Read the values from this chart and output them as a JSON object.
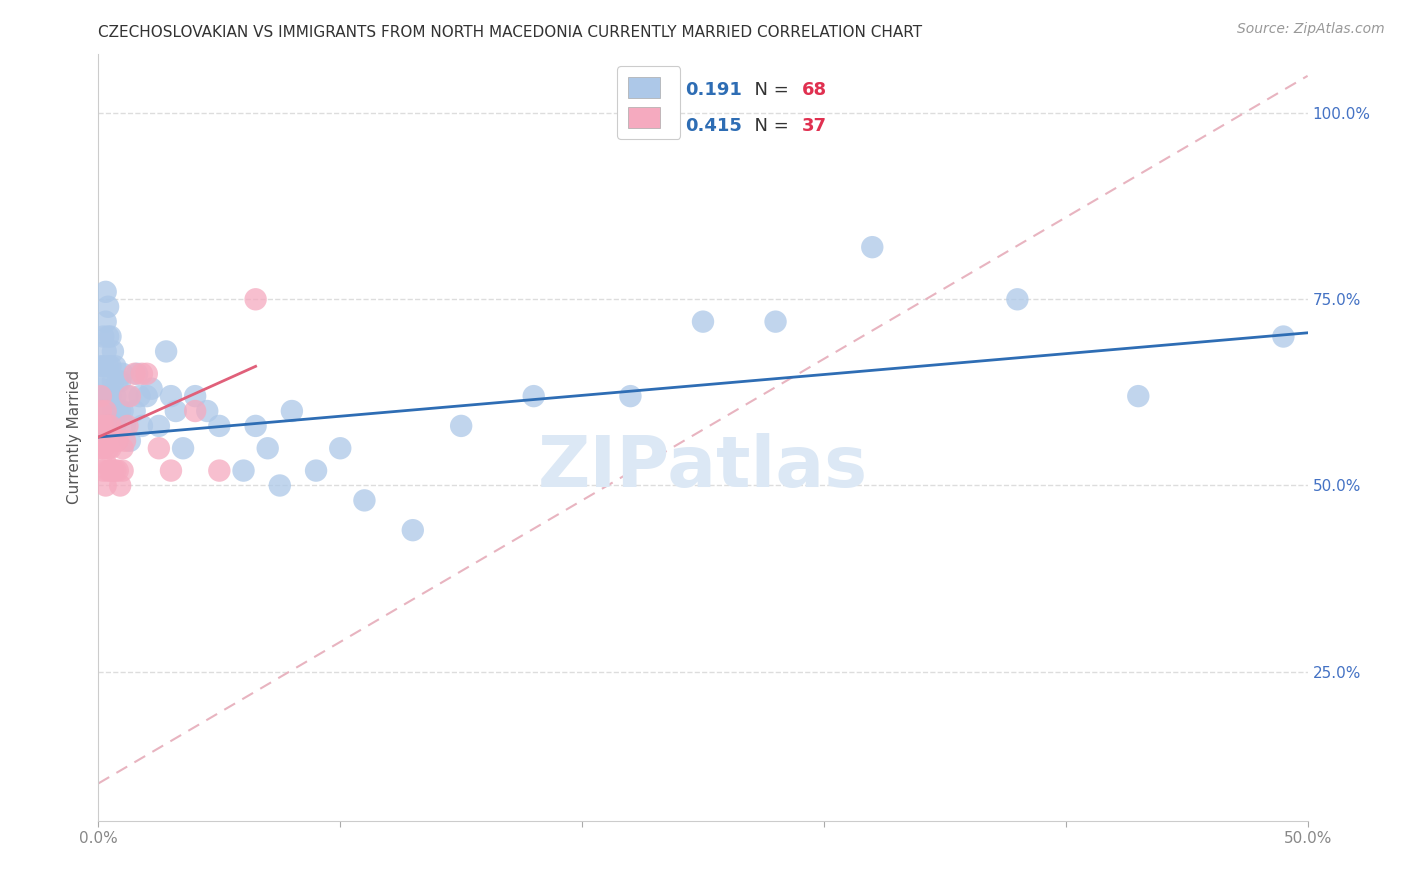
{
  "title": "CZECHOSLOVAKIAN VS IMMIGRANTS FROM NORTH MACEDONIA CURRENTLY MARRIED CORRELATION CHART",
  "source": "Source: ZipAtlas.com",
  "ylabel": "Currently Married",
  "right_yticklabels": [
    "",
    "25.0%",
    "50.0%",
    "75.0%",
    "100.0%"
  ],
  "xmin": 0.0,
  "xmax": 0.5,
  "ymin": 0.05,
  "ymax": 1.08,
  "legend_r1": "0.191",
  "legend_n1": "68",
  "legend_r2": "0.415",
  "legend_n2": "37",
  "blue_scatter_color": "#adc8e8",
  "pink_scatter_color": "#f5aabf",
  "blue_line_color": "#2e6db4",
  "pink_line_color": "#e0607a",
  "ref_line_color": "#e8b4c0",
  "watermark_text": "ZIPatlas",
  "watermark_color": "#dce8f5",
  "blue_points_x": [
    0.001,
    0.001,
    0.001,
    0.002,
    0.002,
    0.002,
    0.002,
    0.003,
    0.003,
    0.003,
    0.003,
    0.003,
    0.004,
    0.004,
    0.004,
    0.004,
    0.004,
    0.005,
    0.005,
    0.005,
    0.005,
    0.006,
    0.006,
    0.006,
    0.007,
    0.007,
    0.007,
    0.008,
    0.008,
    0.009,
    0.009,
    0.01,
    0.01,
    0.011,
    0.012,
    0.013,
    0.015,
    0.016,
    0.017,
    0.018,
    0.02,
    0.022,
    0.025,
    0.028,
    0.03,
    0.032,
    0.035,
    0.04,
    0.045,
    0.05,
    0.06,
    0.065,
    0.07,
    0.075,
    0.08,
    0.09,
    0.1,
    0.11,
    0.13,
    0.15,
    0.18,
    0.22,
    0.25,
    0.28,
    0.32,
    0.38,
    0.43,
    0.49
  ],
  "blue_points_y": [
    0.6,
    0.63,
    0.66,
    0.58,
    0.62,
    0.66,
    0.7,
    0.6,
    0.64,
    0.68,
    0.72,
    0.76,
    0.58,
    0.62,
    0.66,
    0.7,
    0.74,
    0.58,
    0.62,
    0.66,
    0.7,
    0.6,
    0.64,
    0.68,
    0.58,
    0.62,
    0.66,
    0.6,
    0.64,
    0.6,
    0.64,
    0.6,
    0.65,
    0.58,
    0.62,
    0.56,
    0.6,
    0.65,
    0.62,
    0.58,
    0.62,
    0.63,
    0.58,
    0.68,
    0.62,
    0.6,
    0.55,
    0.62,
    0.6,
    0.58,
    0.52,
    0.58,
    0.55,
    0.5,
    0.6,
    0.52,
    0.55,
    0.48,
    0.44,
    0.58,
    0.62,
    0.62,
    0.72,
    0.72,
    0.82,
    0.75,
    0.62,
    0.7
  ],
  "pink_points_x": [
    0.001,
    0.001,
    0.001,
    0.001,
    0.002,
    0.002,
    0.002,
    0.003,
    0.003,
    0.003,
    0.003,
    0.004,
    0.004,
    0.004,
    0.005,
    0.005,
    0.005,
    0.006,
    0.006,
    0.007,
    0.007,
    0.008,
    0.008,
    0.009,
    0.01,
    0.01,
    0.011,
    0.012,
    0.013,
    0.015,
    0.018,
    0.02,
    0.025,
    0.03,
    0.04,
    0.05,
    0.065
  ],
  "pink_points_y": [
    0.62,
    0.6,
    0.58,
    0.55,
    0.58,
    0.55,
    0.52,
    0.6,
    0.56,
    0.53,
    0.5,
    0.58,
    0.55,
    0.52,
    0.58,
    0.55,
    0.52,
    0.56,
    0.52,
    0.56,
    0.52,
    0.56,
    0.52,
    0.5,
    0.55,
    0.52,
    0.56,
    0.58,
    0.62,
    0.65,
    0.65,
    0.65,
    0.55,
    0.52,
    0.6,
    0.52,
    0.75
  ],
  "blue_trend_x": [
    0.0,
    0.5
  ],
  "blue_trend_y": [
    0.565,
    0.705
  ],
  "pink_trend_x": [
    0.0,
    0.065
  ],
  "pink_trend_y": [
    0.565,
    0.66
  ],
  "ref_line_x": [
    0.0,
    0.5
  ],
  "ref_line_y": [
    0.1,
    1.05
  ],
  "grid_color": "#dddddd",
  "background_color": "#ffffff",
  "title_fontsize": 11,
  "axis_label_fontsize": 11,
  "tick_fontsize": 11,
  "source_fontsize": 10,
  "legend_fontsize": 13,
  "watermark_fontsize": 52
}
